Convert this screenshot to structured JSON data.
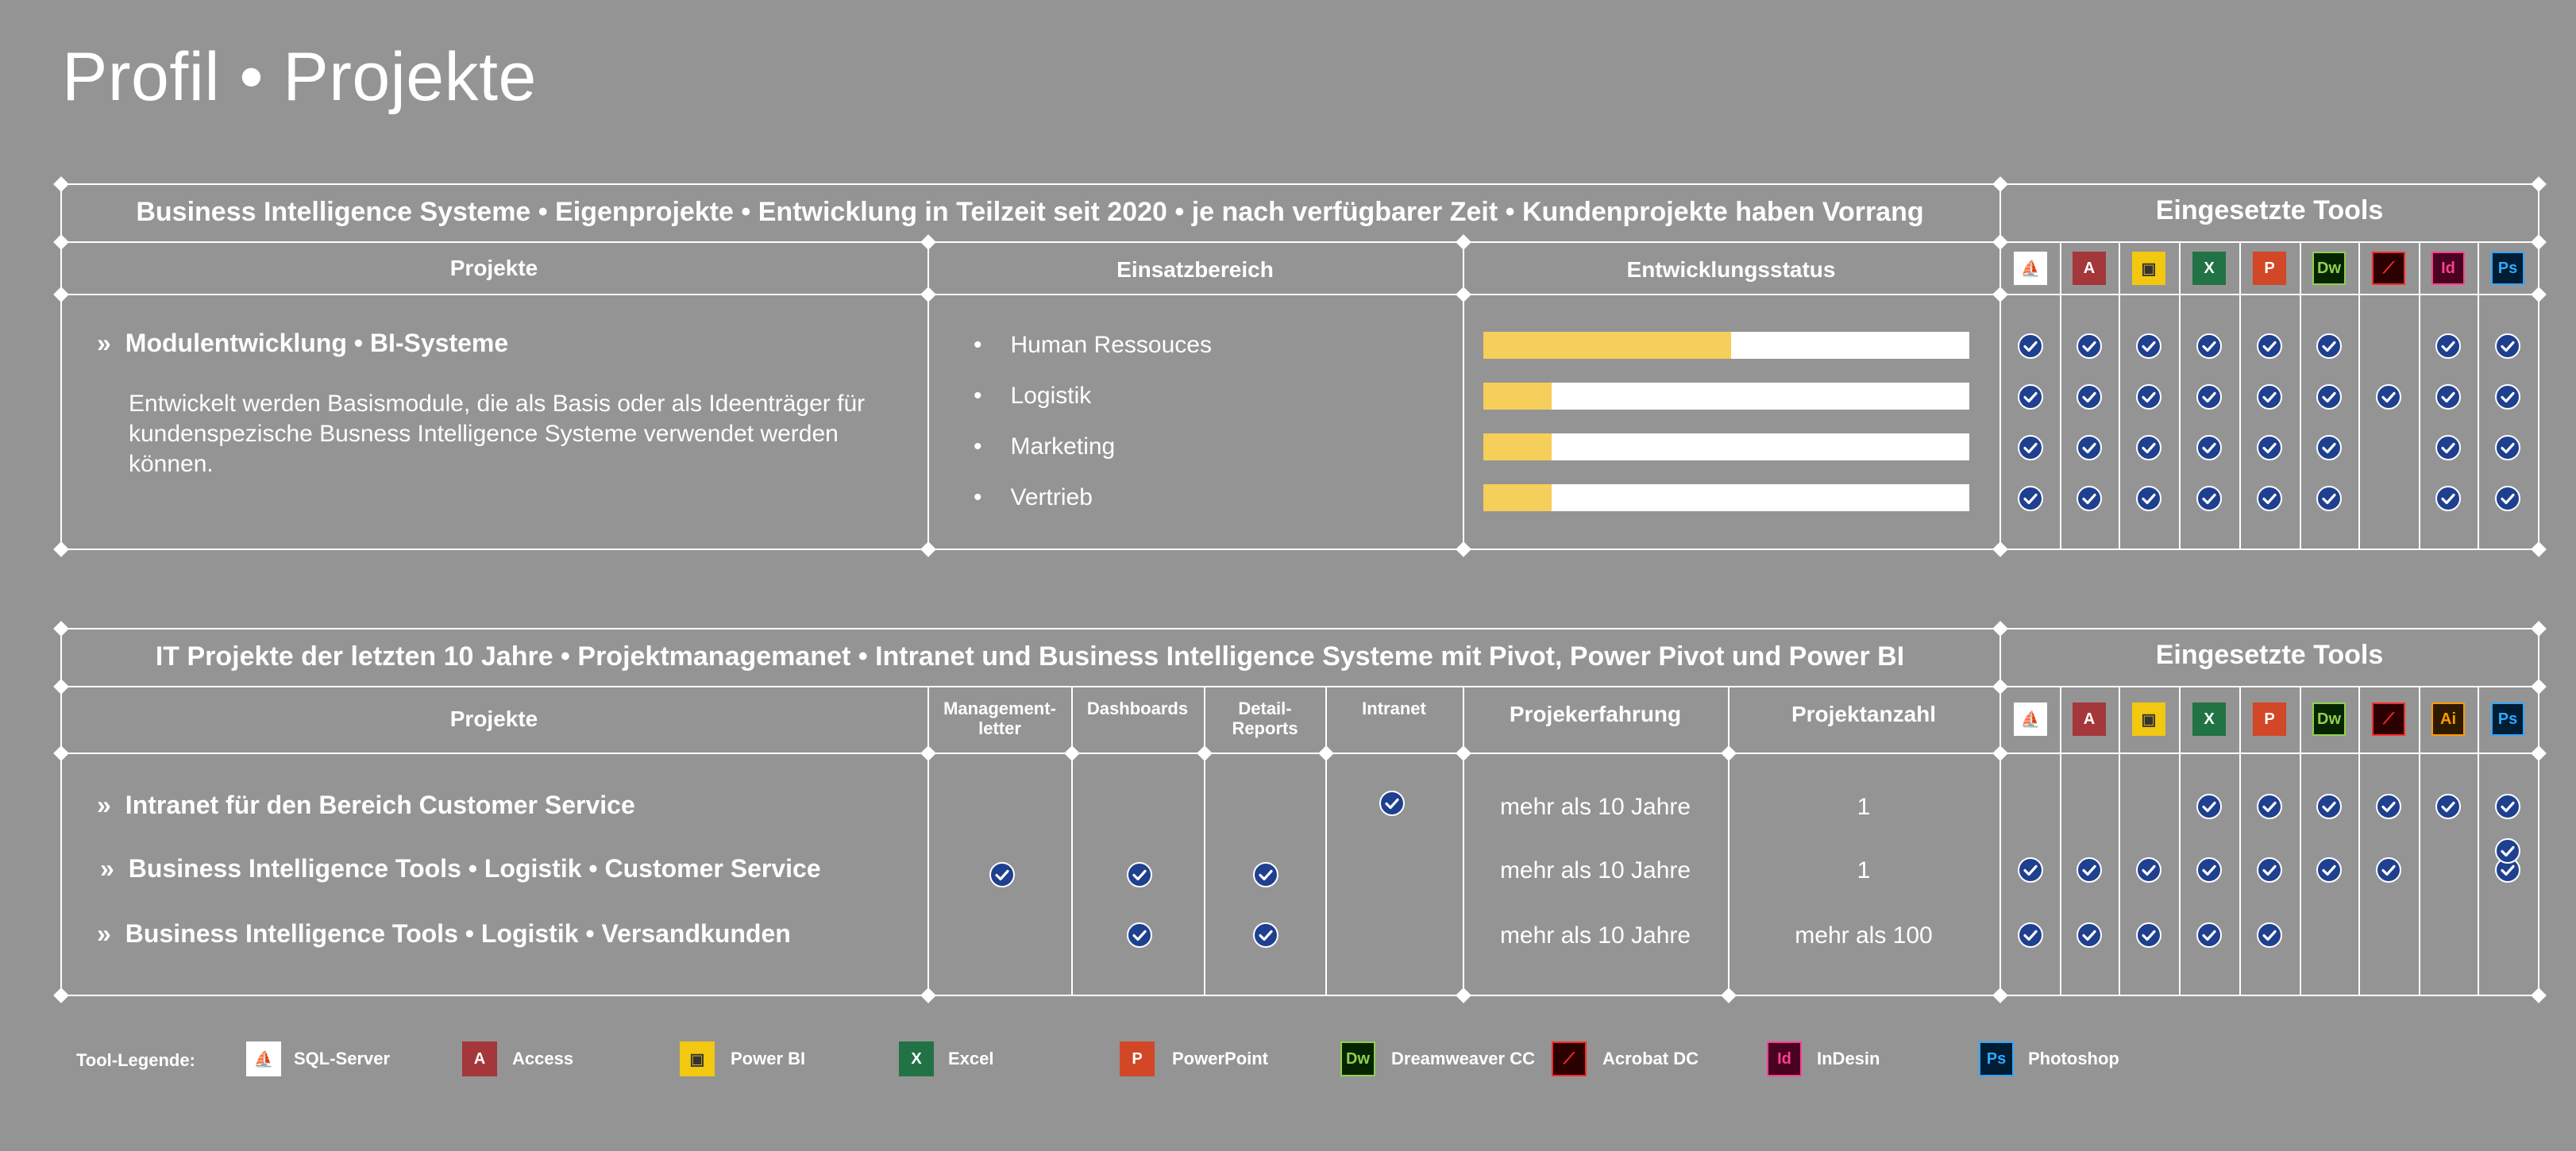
{
  "page_title": "Profil • Projekte",
  "tools": [
    {
      "id": "sql",
      "name": "SQL-Server",
      "bg": "#ffffff",
      "fg": "#c0392b",
      "border": "#ffffff",
      "glyph": "⛵"
    },
    {
      "id": "access",
      "name": "Access",
      "bg": "#a4373a",
      "fg": "#ffffff",
      "border": "#a4373a",
      "glyph": "A"
    },
    {
      "id": "powerbi",
      "name": "Power BI",
      "bg": "#f2c811",
      "fg": "#333333",
      "border": "#f2c811",
      "glyph": "▣"
    },
    {
      "id": "excel",
      "name": "Excel",
      "bg": "#217346",
      "fg": "#ffffff",
      "border": "#217346",
      "glyph": "X"
    },
    {
      "id": "powerpoint",
      "name": "PowerPoint",
      "bg": "#d24726",
      "fg": "#ffffff",
      "border": "#d24726",
      "glyph": "P"
    },
    {
      "id": "dreamweaver",
      "name": "Dreamweaver CC",
      "bg": "#072401",
      "fg": "#8fd14f",
      "border": "#8fd14f",
      "glyph": "Dw"
    },
    {
      "id": "acrobat",
      "name": "Acrobat DC",
      "bg": "#2b0000",
      "fg": "#ff2a2a",
      "border": "#ff2a2a",
      "glyph": "⟋"
    },
    {
      "id": "illustrator",
      "name": "Illustrator",
      "bg": "#2e1a00",
      "fg": "#ff9a00",
      "border": "#ff9a00",
      "glyph": "Ai"
    },
    {
      "id": "indesign",
      "name": "InDesin",
      "bg": "#49021f",
      "fg": "#ff3f94",
      "border": "#ff3f94",
      "glyph": "Id"
    },
    {
      "id": "photoshop",
      "name": "Photoshop",
      "bg": "#001d34",
      "fg": "#31a8ff",
      "border": "#31a8ff",
      "glyph": "Ps"
    }
  ],
  "block1": {
    "title": "Business Intelligence Systeme • Eigenprojekte • Entwicklung  in Teilzeit seit 2020 • je nach verfügbarer Zeit • Kundenprojekte haben Vorrang",
    "tools_heading": "Eingesetzte Tools",
    "col_projekte": "Projekte",
    "col_einsatz": "Einsatzbereich",
    "col_status": "Entwicklungsstatus",
    "tool_ids": [
      "sql",
      "access",
      "powerbi",
      "excel",
      "powerpoint",
      "dreamweaver",
      "acrobat",
      "indesign",
      "photoshop"
    ],
    "project": {
      "arrow": "»",
      "name": "Modulentwicklung • BI-Systeme",
      "description": "Entwickelt werden Basismodule, die als Basis oder als Ideenträger für kundenspezische Busness Intelligence Systeme verwendet werden können."
    },
    "areas": [
      {
        "bullet": "•",
        "label": "Human Ressouces",
        "progress": 0.51,
        "tools": [
          1,
          1,
          1,
          1,
          1,
          1,
          0,
          1,
          1
        ]
      },
      {
        "bullet": "•",
        "label": "Logistik",
        "progress": 0.14,
        "tools": [
          1,
          1,
          1,
          1,
          1,
          1,
          1,
          1,
          1
        ]
      },
      {
        "bullet": "•",
        "label": "Marketing",
        "progress": 0.14,
        "tools": [
          1,
          1,
          1,
          1,
          1,
          1,
          0,
          1,
          1
        ]
      },
      {
        "bullet": "•",
        "label": "Vertrieb",
        "progress": 0.14,
        "tools": [
          1,
          1,
          1,
          1,
          1,
          1,
          0,
          1,
          1
        ]
      }
    ]
  },
  "block2": {
    "title": "IT Projekte der letzten 10 Jahre • Projektmanagemanet • Intranet und Business Intelligence Systeme mit Pivot, Power Pivot und Power BI",
    "tools_heading": "Eingesetzte Tools",
    "col_projekte": "Projekte",
    "col_management": "Management-letter",
    "col_dashboards": "Dashboards",
    "col_detail": "Detail-Reports",
    "col_intranet": "Intranet",
    "col_erfahrung": "Projekerfahrung",
    "col_anzahl": "Projektanzahl",
    "tool_ids": [
      "sql",
      "access",
      "powerbi",
      "excel",
      "powerpoint",
      "dreamweaver",
      "acrobat",
      "illustrator",
      "photoshop"
    ],
    "rows": [
      {
        "arrow": "»",
        "name": "Intranet für den Bereich Customer Service",
        "management": 0,
        "dashboards": 0,
        "detail": 0,
        "intranet": 1,
        "erfahrung": "mehr als 10 Jahre",
        "anzahl": "1",
        "tools": [
          0,
          0,
          0,
          1,
          1,
          1,
          1,
          1,
          1
        ]
      },
      {
        "arrow": "»",
        "name": "Business Intelligence Tools • Logistik • Customer Service",
        "management": 1,
        "dashboards": 1,
        "detail": 1,
        "intranet": 0,
        "erfahrung": "mehr als 10 Jahre",
        "anzahl": "1",
        "tools": [
          1,
          1,
          1,
          1,
          1,
          1,
          1,
          0,
          1
        ]
      },
      {
        "arrow": "»",
        "name": "Business Intelligence Tools • Logistik • Versandkunden",
        "management": 0,
        "dashboards": 1,
        "detail": 1,
        "intranet": 0,
        "erfahrung": "mehr als 10 Jahre",
        "anzahl": "mehr als 100",
        "tools": [
          1,
          1,
          1,
          1,
          1,
          0,
          0,
          0,
          0
        ]
      }
    ]
  },
  "legend": {
    "label": "Tool-Legende:",
    "items": [
      "sql",
      "access",
      "powerbi",
      "excel",
      "powerpoint",
      "dreamweaver",
      "acrobat",
      "indesign",
      "photoshop"
    ]
  }
}
